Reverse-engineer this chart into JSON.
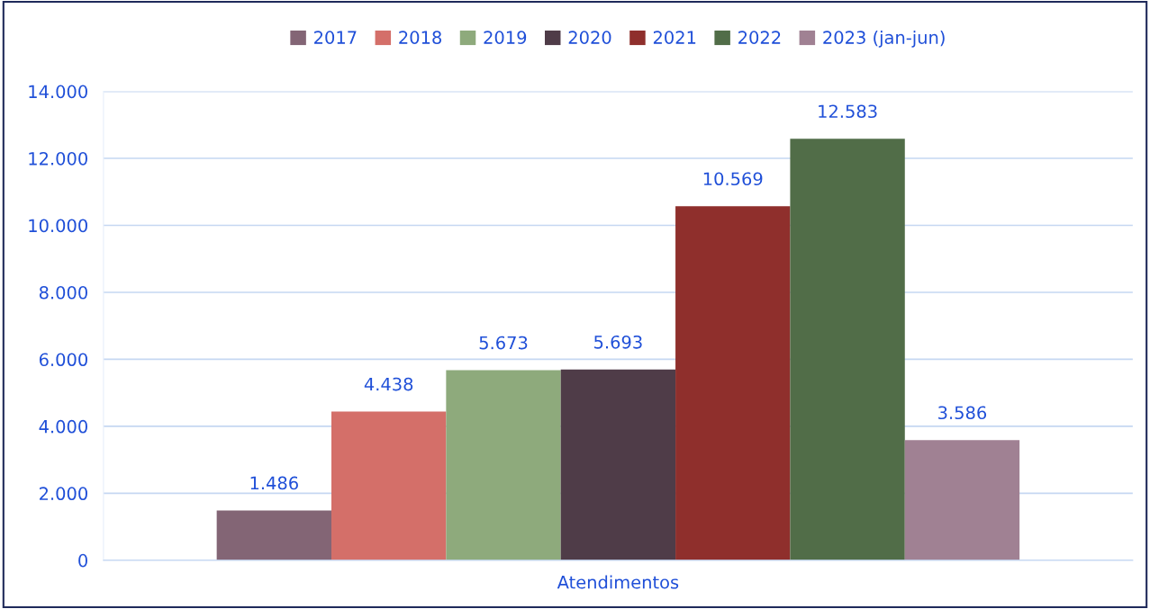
{
  "chart_data": {
    "type": "bar",
    "categories": [
      "Atendimentos"
    ],
    "series": [
      {
        "name": "2017",
        "color": "#836575",
        "values": [
          1486
        ],
        "value_labels": [
          "1.486"
        ]
      },
      {
        "name": "2018",
        "color": "#d46f69",
        "values": [
          4438
        ],
        "value_labels": [
          "4.438"
        ]
      },
      {
        "name": "2019",
        "color": "#8eaa7c",
        "values": [
          5673
        ],
        "value_labels": [
          "5.673"
        ]
      },
      {
        "name": "2020",
        "color": "#4f3c48",
        "values": [
          5693
        ],
        "value_labels": [
          "5.693"
        ]
      },
      {
        "name": "2021",
        "color": "#8f2f2c",
        "values": [
          10569
        ],
        "value_labels": [
          "10.569"
        ]
      },
      {
        "name": "2022",
        "color": "#516d48",
        "values": [
          12583
        ],
        "value_labels": [
          "12.583"
        ]
      },
      {
        "name": "2023 (jan-jun)",
        "color": "#a08193",
        "values": [
          3586
        ],
        "value_labels": [
          "3.586"
        ]
      }
    ],
    "ylim": [
      0,
      14000
    ],
    "yticks": [
      0,
      {
        "value": 2000,
        "label": "2.000"
      },
      {
        "value": 4000,
        "label": "4.000"
      },
      {
        "value": 6000,
        "label": "6.000"
      },
      {
        "value": 8000,
        "label": "8.000"
      },
      {
        "value": 10000,
        "label": "10.000"
      },
      {
        "value": 12000,
        "label": "12.000"
      },
      {
        "value": 14000,
        "label": "14.000"
      }
    ],
    "grid": "y",
    "legend": "top"
  }
}
